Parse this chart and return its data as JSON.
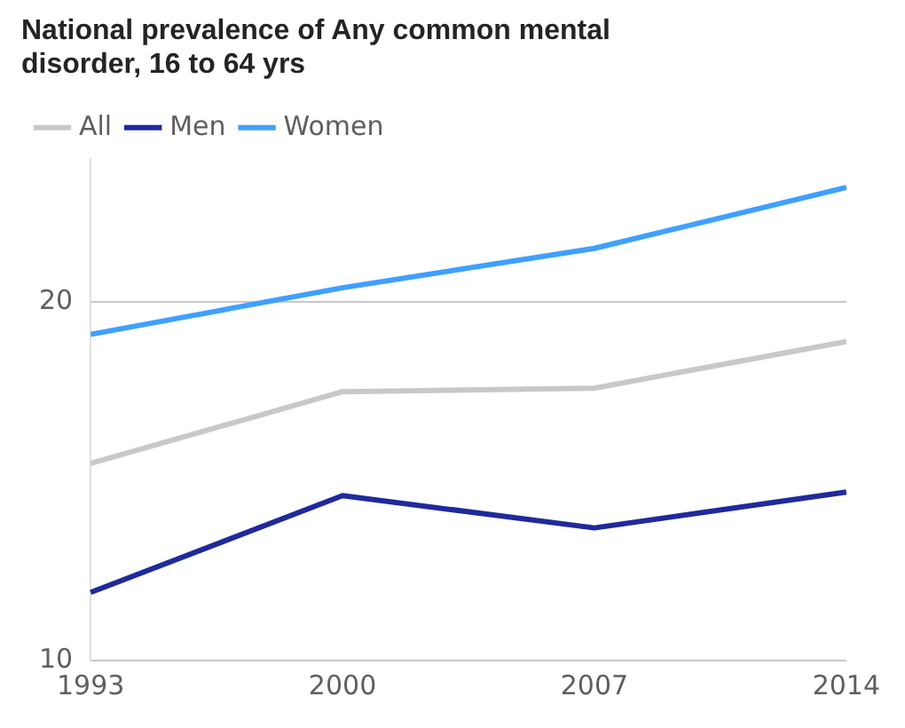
{
  "chart_data": {
    "type": "line",
    "title": "National prevalence of Any common mental disorder, 16 to 64 yrs",
    "categories": [
      "1993",
      "2000",
      "2007",
      "2014"
    ],
    "series": [
      {
        "name": "All",
        "color": "#c8c8c8",
        "values": [
          15.5,
          17.5,
          17.6,
          18.9
        ]
      },
      {
        "name": "Men",
        "color": "#1f2a9c",
        "values": [
          11.9,
          14.6,
          13.7,
          14.7
        ]
      },
      {
        "name": "Women",
        "color": "#3fa0ff",
        "values": [
          19.1,
          20.4,
          21.5,
          23.2
        ]
      }
    ],
    "ylim": [
      10,
      24
    ],
    "yticks": [
      10,
      20
    ],
    "grid": "y",
    "legend": "top left",
    "marker": "none",
    "line_style": "solid"
  }
}
